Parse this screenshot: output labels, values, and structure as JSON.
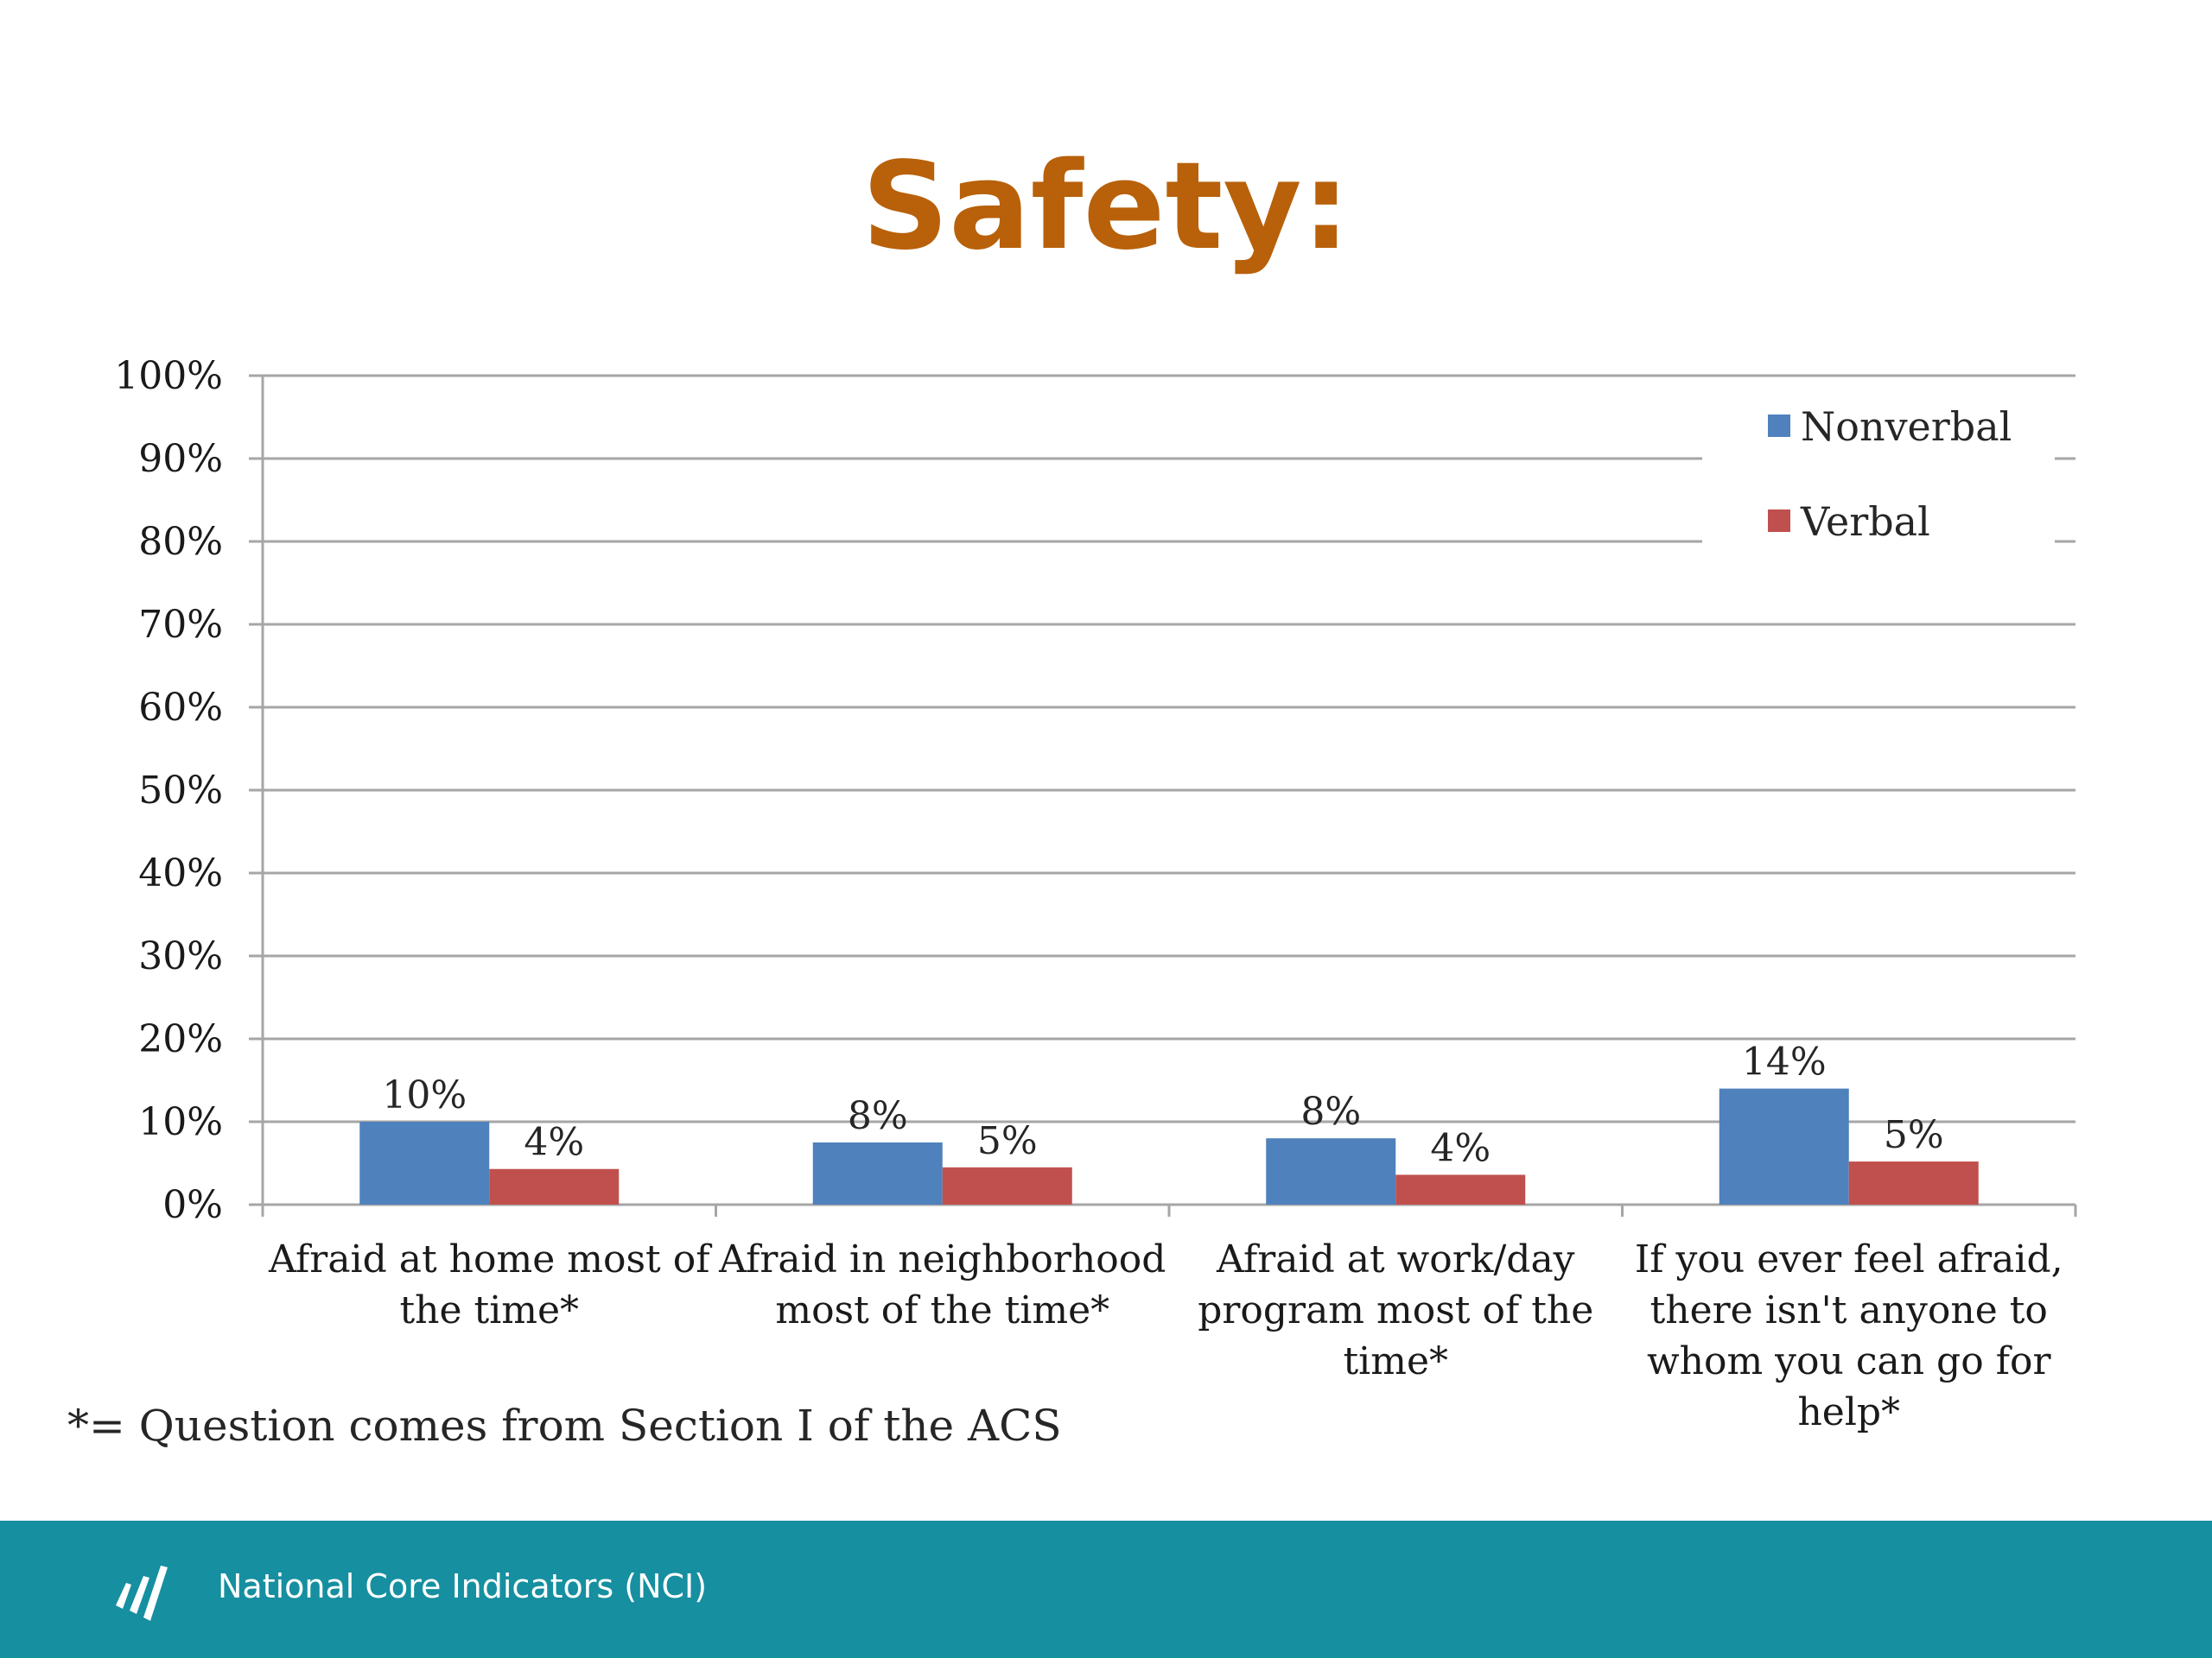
{
  "slide": {
    "title": "Safety:",
    "footnote": "*= Question comes from Section I of the ACS",
    "footer_text": "National Core Indicators (NCI)"
  },
  "colors": {
    "title": "#b8610a",
    "footer_band": "#168fa0",
    "nonverbal": "#4f81bd",
    "verbal": "#c0504d",
    "gridline": "#a6a6a6"
  },
  "chart_data": {
    "type": "bar",
    "title": "",
    "xlabel": "",
    "ylabel": "",
    "ylim": [
      0,
      100
    ],
    "yticks": [
      "0%",
      "10%",
      "20%",
      "30%",
      "40%",
      "50%",
      "60%",
      "70%",
      "80%",
      "90%",
      "100%"
    ],
    "grid": true,
    "legend_position": "top-right",
    "categories": [
      [
        "Afraid at home most of",
        "the time*"
      ],
      [
        "Afraid in neighborhood",
        "most of the time*"
      ],
      [
        "Afraid at work/day",
        "program most of the",
        "time*"
      ],
      [
        "If you ever feel afraid,",
        "there isn't anyone to",
        "whom you can go for",
        "help*"
      ]
    ],
    "series": [
      {
        "name": "Nonverbal",
        "color": "#4f81bd",
        "values": [
          10,
          7.5,
          8,
          14
        ],
        "labels": [
          "10%",
          "8%",
          "8%",
          "14%"
        ]
      },
      {
        "name": "Verbal",
        "color": "#c0504d",
        "values": [
          4.3,
          4.5,
          3.6,
          5.2
        ],
        "labels": [
          "4%",
          "5%",
          "4%",
          "5%"
        ]
      }
    ]
  }
}
